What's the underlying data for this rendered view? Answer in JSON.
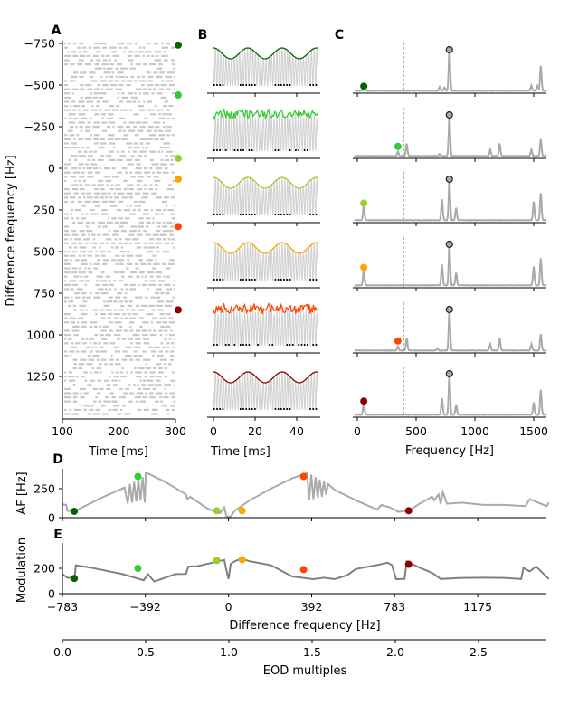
{
  "chart_data": [
    {
      "panel": "A",
      "type": "scatter",
      "xlabel": "Time [ms]",
      "ylabel": "Difference frequency [Hz]",
      "xlim": [
        100,
        300
      ],
      "ylim": [
        1500,
        -790
      ],
      "xticks": [
        "100",
        "200",
        "300"
      ],
      "yticks": [
        "−750",
        "−500",
        "−250",
        "0",
        "250",
        "500",
        "750",
        "1000",
        "1250"
      ],
      "markers": [
        {
          "df": -740,
          "color": "#006400"
        },
        {
          "df": -440,
          "color": "#32cd32"
        },
        {
          "df": -60,
          "color": "#9acd32"
        },
        {
          "df": 65,
          "color": "#ffa500"
        },
        {
          "df": 350,
          "color": "#ff4500"
        },
        {
          "df": 850,
          "color": "#8b0000"
        }
      ]
    },
    {
      "panel": "B",
      "type": "line",
      "xlabel": "Time [ms]",
      "xlim": [
        0,
        50
      ],
      "xticks": [
        "0",
        "20",
        "40"
      ],
      "traces": [
        {
          "color": "#006400",
          "af_hz": 55,
          "noisy": false
        },
        {
          "color": "#32cd32",
          "af_hz": 355,
          "noisy": true
        },
        {
          "color": "#9acd32",
          "af_hz": 60,
          "noisy": false
        },
        {
          "color": "#ffa500",
          "af_hz": 60,
          "noisy": false
        },
        {
          "color": "#ff4500",
          "af_hz": 355,
          "noisy": true
        },
        {
          "color": "#8b0000",
          "af_hz": 60,
          "noisy": false
        }
      ]
    },
    {
      "panel": "C",
      "type": "line",
      "xlabel": "Frequency [Hz]",
      "xlim": [
        -30,
        1610
      ],
      "xticks": [
        "0",
        "500",
        "1000",
        "1500"
      ],
      "dashed_line_hz": 392,
      "eod_peak_hz": 783,
      "spectra": [
        {
          "color": "#006400",
          "af_hz": 55,
          "af_amp": 0.08,
          "peaks": [
            [
              55,
              0.08
            ],
            [
              700,
              0.1
            ],
            [
              740,
              0.08
            ],
            [
              783,
              1
            ],
            [
              1480,
              0.12
            ],
            [
              1530,
              0.12
            ],
            [
              1560,
              0.6
            ]
          ]
        },
        {
          "color": "#32cd32",
          "af_hz": 345,
          "af_amp": 0.2,
          "peaks": [
            [
              345,
              0.1
            ],
            [
              420,
              0.3
            ],
            [
              700,
              0.05
            ],
            [
              783,
              1
            ],
            [
              1130,
              0.15
            ],
            [
              1210,
              0.3
            ],
            [
              1480,
              0.15
            ],
            [
              1560,
              0.4
            ]
          ]
        },
        {
          "color": "#9acd32",
          "af_hz": 55,
          "af_amp": 0.38,
          "peaks": [
            [
              55,
              0.38
            ],
            [
              720,
              0.5
            ],
            [
              783,
              1
            ],
            [
              840,
              0.3
            ],
            [
              1500,
              0.45
            ],
            [
              1560,
              0.65
            ]
          ]
        },
        {
          "color": "#ffa500",
          "af_hz": 55,
          "af_amp": 0.4,
          "peaks": [
            [
              55,
              0.4
            ],
            [
              720,
              0.5
            ],
            [
              783,
              1
            ],
            [
              840,
              0.3
            ],
            [
              1500,
              0.45
            ],
            [
              1560,
              0.65
            ]
          ]
        },
        {
          "color": "#ff4500",
          "af_hz": 345,
          "af_amp": 0.2,
          "peaks": [
            [
              345,
              0.1
            ],
            [
              420,
              0.3
            ],
            [
              680,
              0.05
            ],
            [
              783,
              1
            ],
            [
              1130,
              0.15
            ],
            [
              1210,
              0.3
            ],
            [
              1480,
              0.15
            ],
            [
              1560,
              0.4
            ]
          ]
        },
        {
          "color": "#8b0000",
          "af_hz": 55,
          "af_amp": 0.3,
          "peaks": [
            [
              55,
              0.3
            ],
            [
              720,
              0.4
            ],
            [
              783,
              1
            ],
            [
              840,
              0.25
            ],
            [
              1500,
              0.3
            ],
            [
              1560,
              0.6
            ]
          ]
        }
      ]
    },
    {
      "panel": "D",
      "type": "line",
      "ylabel": "AF [Hz]",
      "xlim": [
        -783,
        1510
      ],
      "ylim": [
        0,
        400
      ],
      "yticks": [
        "0",
        "250"
      ],
      "line_color": "#aaaaaa",
      "x": [
        -783,
        -765,
        -760,
        -727,
        -600,
        -490,
        -475,
        -465,
        -455,
        -445,
        -435,
        -425,
        -415,
        -405,
        -395,
        -390,
        -300,
        -200,
        -195,
        -180,
        -100,
        -40,
        -20,
        -10,
        10,
        30,
        100,
        200,
        300,
        370,
        380,
        390,
        400,
        410,
        420,
        430,
        440,
        450,
        460,
        470,
        500,
        600,
        700,
        720,
        760,
        800,
        850,
        900,
        960,
        970,
        990,
        1000,
        1010,
        1030,
        1100,
        1200,
        1300,
        1400,
        1420,
        1460,
        1500,
        1510
      ],
      "y": [
        115,
        110,
        60,
        55,
        170,
        260,
        120,
        290,
        130,
        310,
        140,
        330,
        150,
        350,
        130,
        390,
        310,
        200,
        160,
        180,
        80,
        40,
        90,
        10,
        10,
        60,
        150,
        250,
        340,
        385,
        150,
        370,
        160,
        350,
        170,
        330,
        180,
        310,
        200,
        290,
        240,
        150,
        70,
        110,
        90,
        50,
        60,
        120,
        180,
        150,
        200,
        120,
        220,
        120,
        130,
        110,
        110,
        100,
        160,
        130,
        100,
        130
      ],
      "points": [
        {
          "df": -727,
          "af": 55,
          "color": "#006400"
        },
        {
          "df": -427,
          "af": 355,
          "color": "#32cd32"
        },
        {
          "df": -55,
          "af": 60,
          "color": "#9acd32"
        },
        {
          "df": 64,
          "af": 60,
          "color": "#ffa500"
        },
        {
          "df": 354,
          "af": 355,
          "color": "#ff4500"
        },
        {
          "df": 849,
          "af": 60,
          "color": "#8b0000"
        }
      ]
    },
    {
      "panel": "E",
      "type": "line",
      "xlabel": "Difference frequency [Hz]",
      "ylabel": "Modulation",
      "xlim": [
        -783,
        1510
      ],
      "ylim": [
        0,
        380
      ],
      "xticks": [
        "−783",
        "−392",
        "0",
        "392",
        "783",
        "1175"
      ],
      "xtick_values": [
        -783,
        -392,
        0,
        392,
        783,
        1175
      ],
      "yticks": [
        "0",
        "200"
      ],
      "line_color": "#808080",
      "x": [
        -783,
        -760,
        -740,
        -725,
        -720,
        -650,
        -500,
        -400,
        -380,
        -350,
        -250,
        -200,
        -190,
        -150,
        -50,
        -20,
        -10,
        0,
        10,
        30,
        60,
        100,
        200,
        300,
        400,
        450,
        500,
        560,
        600,
        700,
        750,
        770,
        790,
        830,
        840,
        900,
        960,
        1000,
        1100,
        1200,
        1300,
        1380,
        1390,
        1420,
        1450,
        1510
      ],
      "y": [
        150,
        130,
        120,
        140,
        220,
        210,
        150,
        110,
        150,
        100,
        150,
        160,
        210,
        220,
        250,
        270,
        180,
        120,
        230,
        260,
        270,
        260,
        220,
        140,
        110,
        130,
        110,
        150,
        190,
        230,
        240,
        230,
        110,
        120,
        250,
        210,
        160,
        120,
        120,
        130,
        120,
        120,
        200,
        180,
        210,
        120
      ],
      "points": [
        {
          "df": -727,
          "mod": 120,
          "color": "#006400"
        },
        {
          "df": -427,
          "mod": 200,
          "color": "#32cd32"
        },
        {
          "df": -55,
          "mod": 262,
          "color": "#9acd32"
        },
        {
          "df": 64,
          "mod": 268,
          "color": "#ffa500"
        },
        {
          "df": 354,
          "mod": 190,
          "color": "#ff4500"
        },
        {
          "df": 849,
          "mod": 232,
          "color": "#8b0000"
        }
      ],
      "secondary_axis": {
        "label": "EOD multiples",
        "xlim": [
          0,
          2.93
        ],
        "xticks": [
          "0.0",
          "0.5",
          "1.0",
          "1.5",
          "2.0",
          "2.5"
        ],
        "xtick_values": [
          0,
          0.5,
          1.0,
          1.5,
          2.0,
          2.5
        ]
      }
    }
  ],
  "panel_letters": [
    "A",
    "B",
    "C",
    "D",
    "E"
  ]
}
